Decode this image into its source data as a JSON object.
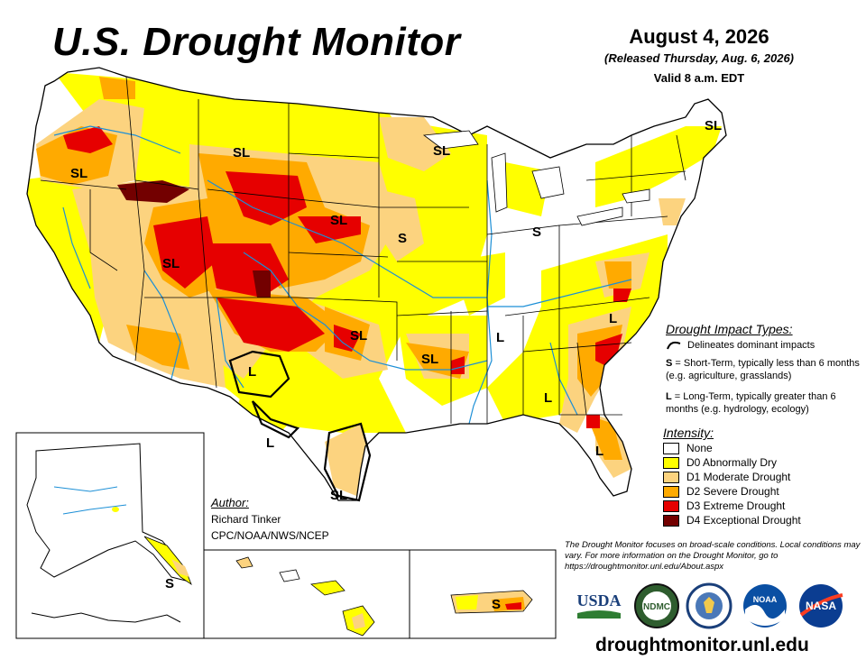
{
  "header": {
    "title": "U.S. Drought Monitor",
    "date": "August 4, 2026",
    "released": "(Released Thursday, Aug. 6, 2026)",
    "valid": "Valid 8 a.m. EDT"
  },
  "map": {
    "region_labels": [
      "SL",
      "SL",
      "SL",
      "SL",
      "SL",
      "S",
      "S",
      "SL",
      "SL",
      "L",
      "L",
      "SL",
      "L",
      "L",
      "L",
      "L",
      "SL",
      "S",
      "S"
    ],
    "colors": {
      "none": "#ffffff",
      "d0": "#ffff00",
      "d1": "#fcd37f",
      "d2": "#ffaa00",
      "d3": "#e60000",
      "d4": "#730000",
      "rivers": "#1c8fd6",
      "borders": "#000000"
    }
  },
  "impact": {
    "title": "Drought Impact Types:",
    "delineates": "Delineates dominant impacts",
    "short_term_key": "S",
    "short_term_text": " = Short-Term, typically less than 6 months (e.g. agriculture, grasslands)",
    "long_term_key": "L",
    "long_term_text": " = Long-Term, typically greater than 6 months (e.g. hydrology, ecology)"
  },
  "intensity": {
    "title": "Intensity:",
    "items": [
      {
        "label": "None",
        "color": "#ffffff"
      },
      {
        "label": "D0 Abnormally Dry",
        "color": "#ffff00"
      },
      {
        "label": "D1 Moderate Drought",
        "color": "#fcd37f"
      },
      {
        "label": "D2 Severe Drought",
        "color": "#ffaa00"
      },
      {
        "label": "D3 Extreme Drought",
        "color": "#e60000"
      },
      {
        "label": "D4 Exceptional Drought",
        "color": "#730000"
      }
    ]
  },
  "author": {
    "title": "Author:",
    "name": "Richard Tinker",
    "org": "CPC/NOAA/NWS/NCEP"
  },
  "footnote": "The Drought Monitor focuses on broad-scale conditions. Local conditions may vary. For more information on the Drought Monitor, go to https://droughtmonitor.unl.edu/About.aspx",
  "logos": {
    "usda": "USDA",
    "ndmc": "NDMC",
    "noaa": "NOAA",
    "nasa": "NASA"
  },
  "url": "droughtmonitor.unl.edu"
}
